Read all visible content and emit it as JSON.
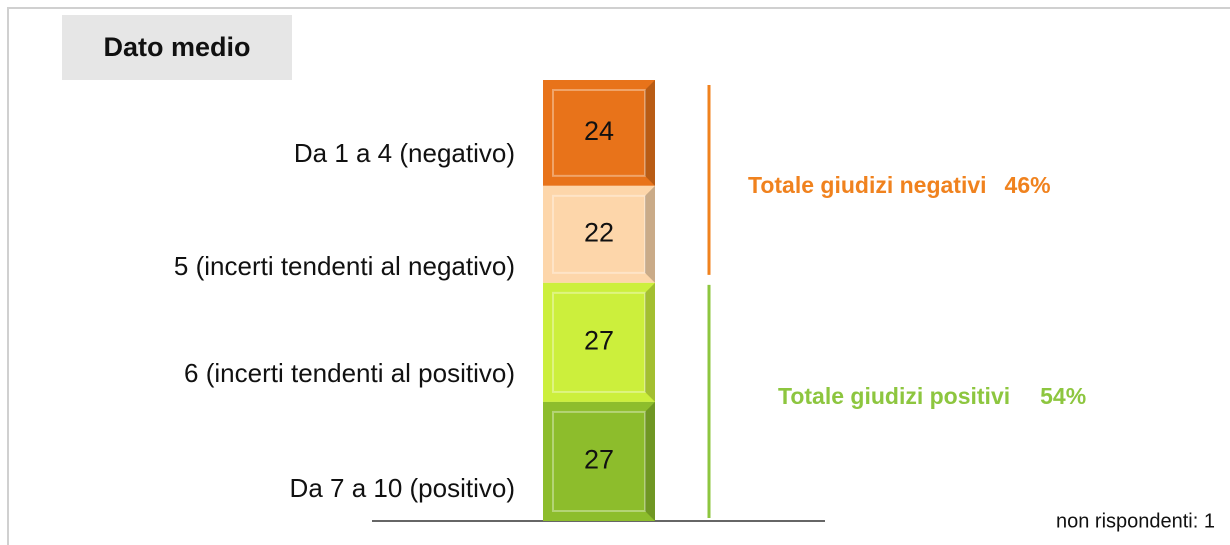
{
  "chart_data": {
    "type": "stacked-bar",
    "title": "Dato medio",
    "categories": [
      "Da 1 a 4 (negativo)",
      "5 (incerti tendenti al negativo)",
      "6 (incerti tendenti al positivo)",
      "Da 7 a 10 (positivo)"
    ],
    "values": [
      24,
      22,
      27,
      27
    ],
    "colors": [
      "#e8731a",
      "#fdd6aa",
      "#ccef3c",
      "#8dbd2c"
    ],
    "annotations": [
      {
        "text": "Totale giudizi negativi",
        "value": 46,
        "label": "46%",
        "color": "#f0821e"
      },
      {
        "text": "Totale giudizi positivi",
        "value": 54,
        "label": "54%",
        "color": "#8dc63f"
      }
    ],
    "note": "non rispondenti: 1"
  }
}
